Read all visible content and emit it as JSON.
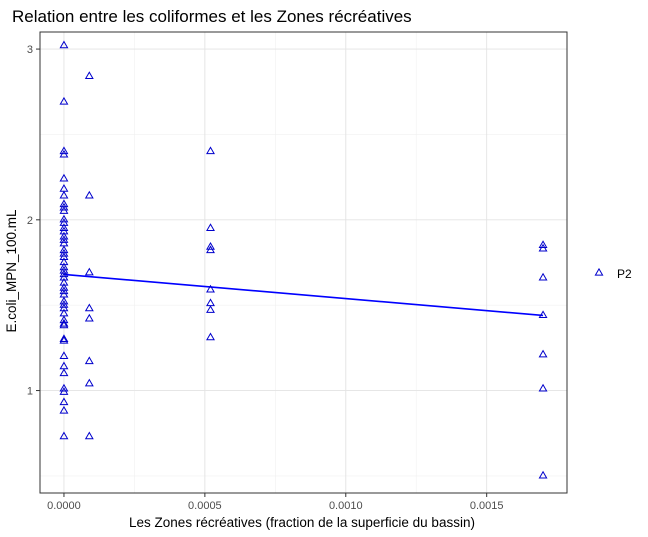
{
  "chart_data": {
    "type": "scatter",
    "title": "Relation entre les coliformes et les Zones récréatives",
    "xlabel": "Les Zones récréatives (fraction de la superficie du bassin)",
    "ylabel": "E.coli_MPN_100.mL",
    "xlim": [
      -8.5e-05,
      0.001785
    ],
    "ylim": [
      0.4,
      3.1
    ],
    "x_ticks": [
      0.0,
      0.0005,
      0.001,
      0.0015
    ],
    "x_tick_labels": [
      "0.0000",
      "0.0005",
      "0.0010",
      "0.0015"
    ],
    "y_ticks": [
      1,
      2,
      3
    ],
    "y_tick_labels": [
      "1",
      "2",
      "3"
    ],
    "grid": true,
    "legend": {
      "position": "right",
      "entries": [
        "P2"
      ]
    },
    "marker": "open-triangle",
    "point_color": "#0000cc",
    "line_color": "#0000ff",
    "fit_line": {
      "x": [
        0.0,
        0.0017
      ],
      "y": [
        1.68,
        1.44
      ]
    },
    "series": [
      {
        "name": "P2",
        "points": [
          [
            0.0,
            3.02
          ],
          [
            0.0,
            2.69
          ],
          [
            0.0,
            2.4
          ],
          [
            0.0,
            2.38
          ],
          [
            0.0,
            2.24
          ],
          [
            0.0,
            2.18
          ],
          [
            0.0,
            2.14
          ],
          [
            0.0,
            2.09
          ],
          [
            0.0,
            2.07
          ],
          [
            0.0,
            2.05
          ],
          [
            0.0,
            2.0
          ],
          [
            0.0,
            1.98
          ],
          [
            0.0,
            1.95
          ],
          [
            0.0,
            1.93
          ],
          [
            0.0,
            1.9
          ],
          [
            0.0,
            1.88
          ],
          [
            0.0,
            1.86
          ],
          [
            0.0,
            1.82
          ],
          [
            0.0,
            1.8
          ],
          [
            0.0,
            1.78
          ],
          [
            0.0,
            1.75
          ],
          [
            0.0,
            1.72
          ],
          [
            0.0,
            1.7
          ],
          [
            0.0,
            1.68
          ],
          [
            0.0,
            1.66
          ],
          [
            0.0,
            1.63
          ],
          [
            0.0,
            1.6
          ],
          [
            0.0,
            1.58
          ],
          [
            0.0,
            1.56
          ],
          [
            0.0,
            1.52
          ],
          [
            0.0,
            1.5
          ],
          [
            0.0,
            1.48
          ],
          [
            0.0,
            1.45
          ],
          [
            0.0,
            1.41
          ],
          [
            0.0,
            1.39
          ],
          [
            0.0,
            1.38
          ],
          [
            0.0,
            1.3
          ],
          [
            0.0,
            1.29
          ],
          [
            0.0,
            1.2
          ],
          [
            0.0,
            1.14
          ],
          [
            0.0,
            1.1
          ],
          [
            0.0,
            1.01
          ],
          [
            0.0,
            0.99
          ],
          [
            0.0,
            0.93
          ],
          [
            0.0,
            0.88
          ],
          [
            0.0,
            0.73
          ],
          [
            9e-05,
            2.84
          ],
          [
            9e-05,
            2.14
          ],
          [
            9e-05,
            1.69
          ],
          [
            9e-05,
            1.48
          ],
          [
            9e-05,
            1.42
          ],
          [
            9e-05,
            1.17
          ],
          [
            9e-05,
            1.04
          ],
          [
            9e-05,
            0.73
          ],
          [
            0.00052,
            2.4
          ],
          [
            0.00052,
            1.95
          ],
          [
            0.00052,
            1.84
          ],
          [
            0.00052,
            1.82
          ],
          [
            0.00052,
            1.59
          ],
          [
            0.00052,
            1.51
          ],
          [
            0.00052,
            1.47
          ],
          [
            0.00052,
            1.31
          ],
          [
            0.0017,
            1.85
          ],
          [
            0.0017,
            1.83
          ],
          [
            0.0017,
            1.66
          ],
          [
            0.0017,
            1.44
          ],
          [
            0.0017,
            1.21
          ],
          [
            0.0017,
            1.01
          ],
          [
            0.0017,
            0.5
          ]
        ]
      }
    ]
  }
}
